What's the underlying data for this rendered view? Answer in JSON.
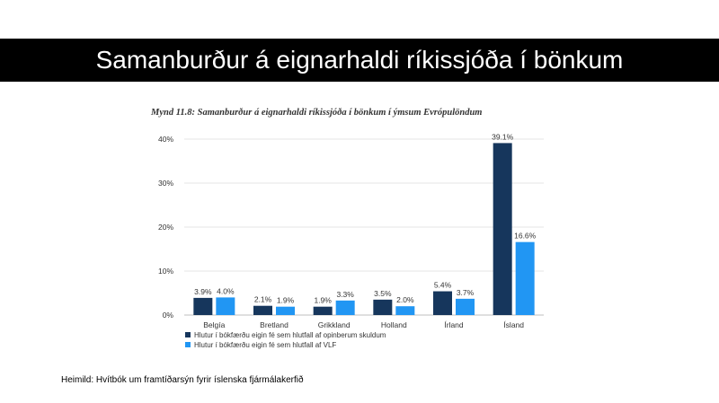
{
  "slide": {
    "title": "Samanburður á eignarhaldi ríkissjóða í bönkum",
    "source": "Heimild: Hvítbók um framtíðarsýn fyrir íslenska fjármálakerfið"
  },
  "colors": {
    "series1": "#16365c",
    "series2": "#2196f3",
    "grid": "#e6e6e6",
    "text": "#333333"
  },
  "chart_data": {
    "type": "bar",
    "title": "Mynd 11.8: Samanburður á eignarhaldi ríkissjóða í bönkum í ýmsum Evrópulöndum",
    "categories": [
      "Belgía",
      "Bretland",
      "Grikkland",
      "Holland",
      "Írland",
      "Ísland"
    ],
    "ylim": [
      0,
      40
    ],
    "yticks": [
      0,
      10,
      20,
      30,
      40
    ],
    "ytick_labels": [
      "0%",
      "10%",
      "20%",
      "30%",
      "40%"
    ],
    "grid": true,
    "legend": "bottom-left",
    "series": [
      {
        "name": "Hlutur í bókfærðu eigin fé sem hlutfall af opinberum skuldum",
        "values": [
          3.9,
          2.1,
          1.9,
          3.5,
          5.4,
          39.1
        ],
        "labels": [
          "3.9%",
          "2.1%",
          "1.9%",
          "3.5%",
          "5.4%",
          "39.1%"
        ]
      },
      {
        "name": "Hlutur í bókfærðu eigin fé sem hlutfall af VLF",
        "values": [
          4.0,
          1.9,
          3.3,
          2.0,
          3.7,
          16.6
        ],
        "labels": [
          "4.0%",
          "1.9%",
          "3.3%",
          "2.0%",
          "3.7%",
          "16.6%"
        ]
      }
    ]
  }
}
